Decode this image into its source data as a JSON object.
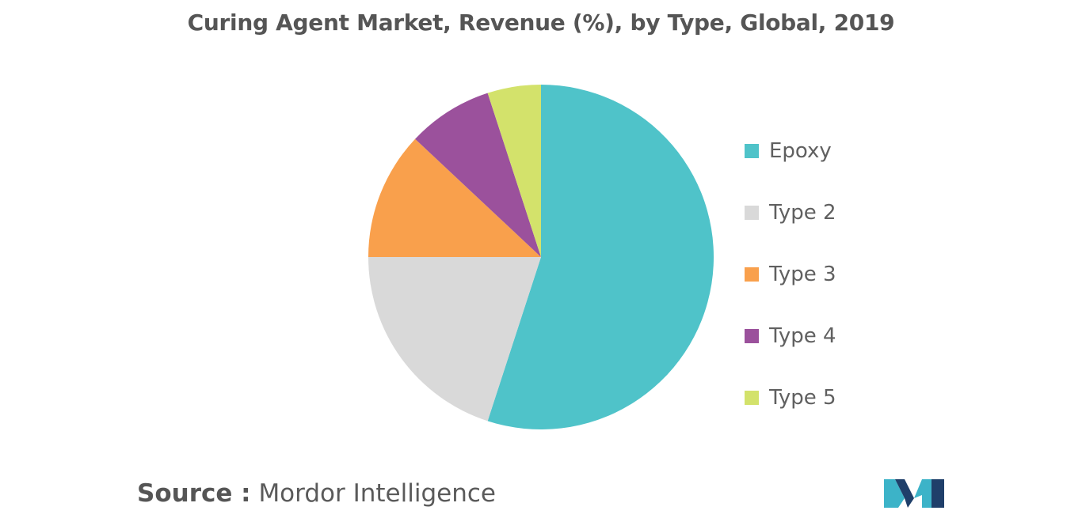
{
  "title": "Curing Agent Market, Revenue (%), by Type, Global, 2019",
  "source": {
    "label": "Source :",
    "text": "Mordor Intelligence"
  },
  "logo": {
    "name": "mordor-intelligence-logo",
    "colors": [
      "#1f3f6a",
      "#3cb3c8"
    ]
  },
  "chart_data": {
    "type": "pie",
    "title": "Curing Agent Market, Revenue (%), by Type, Global, 2019",
    "start_angle_deg": 0,
    "direction": "clockwise",
    "legend_position": "right",
    "slices": [
      {
        "label": "Epoxy",
        "value": 55,
        "color": "#4fc3c9"
      },
      {
        "label": "Type 2",
        "value": 20,
        "color": "#d9d9d9"
      },
      {
        "label": "Type 3",
        "value": 12,
        "color": "#f9a04c"
      },
      {
        "label": "Type 4",
        "value": 8,
        "color": "#9b519c"
      },
      {
        "label": "Type 5",
        "value": 5,
        "color": "#d3e26b"
      }
    ]
  }
}
